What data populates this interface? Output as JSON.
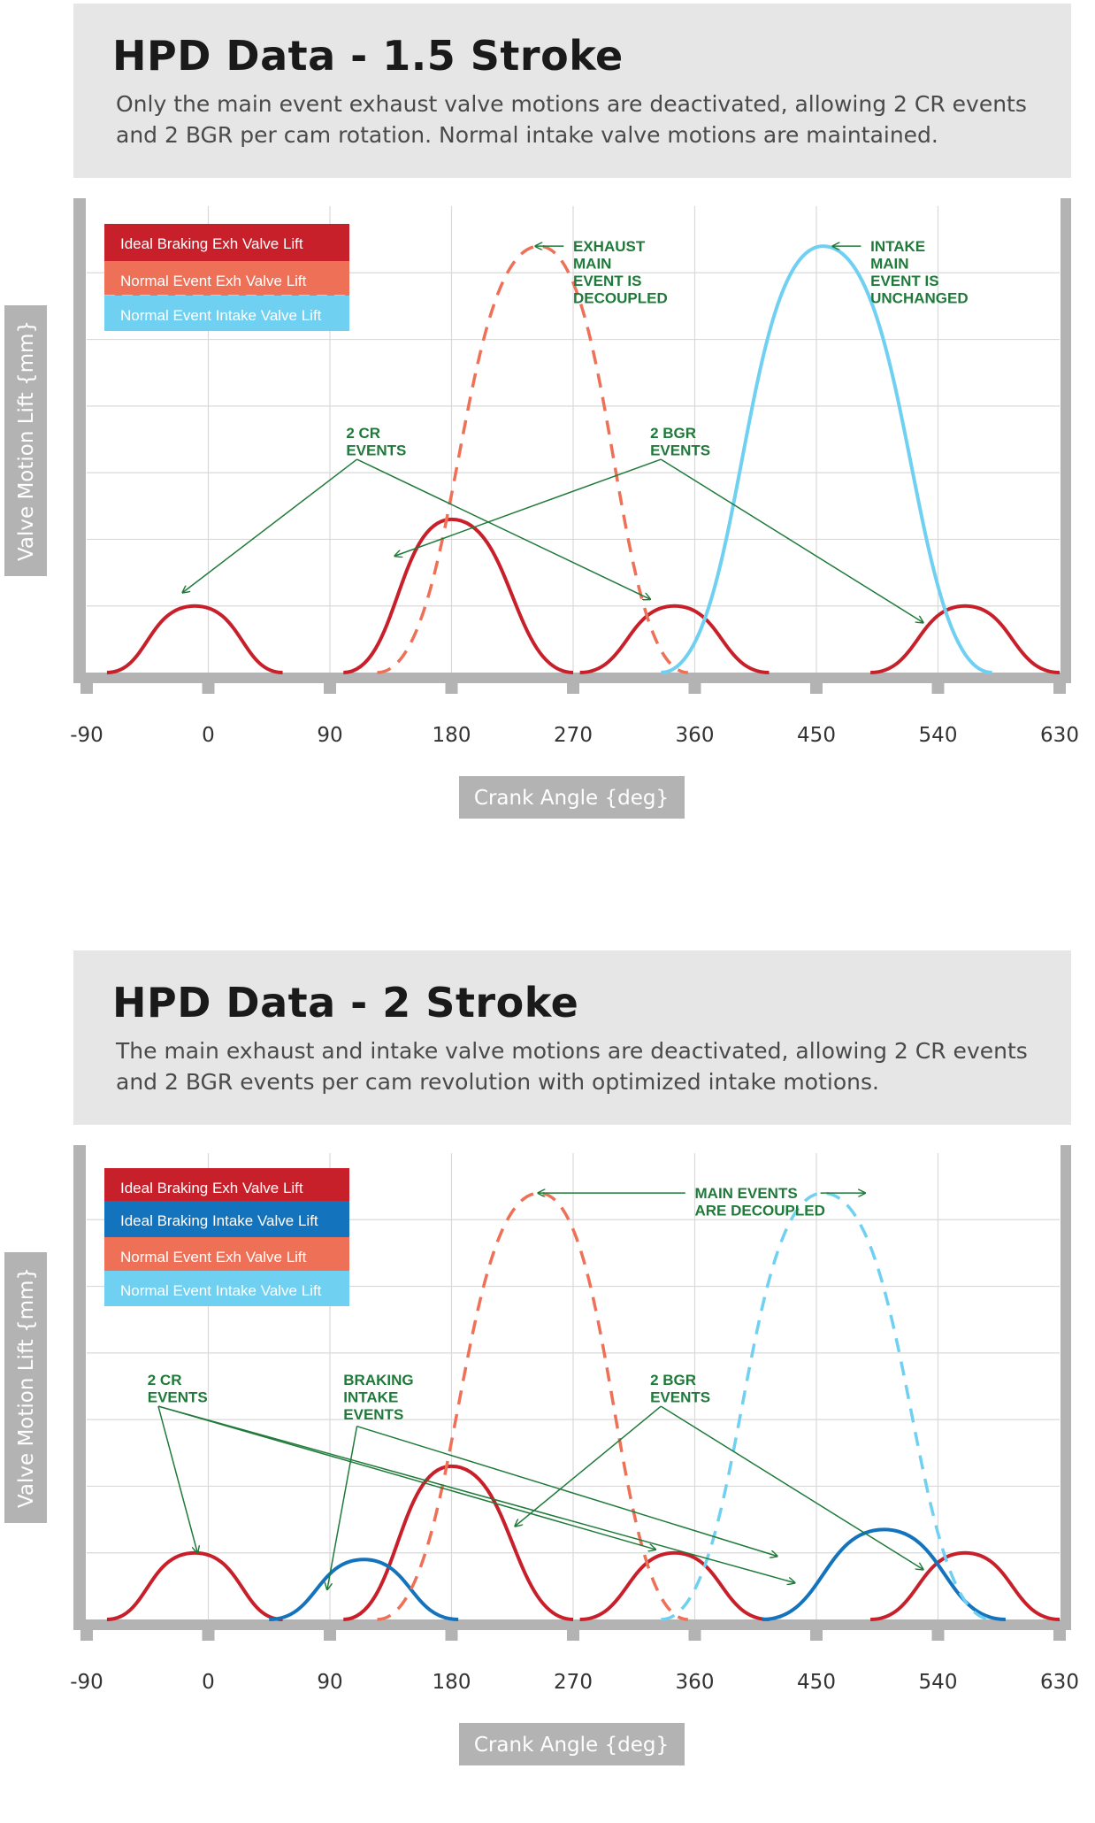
{
  "colors": {
    "ideal_exh": "#c8202a",
    "ideal_int": "#1473bd",
    "normal_exh": "#ee7057",
    "normal_int": "#6fd0f2",
    "annotation": "#1f7a3a",
    "axis": "#b3b3b3",
    "grid": "#d9d9d9"
  },
  "chart_data": [
    {
      "type": "line",
      "title": "HPD Data - 1.5 Stroke",
      "subtitle": "Only the main event exhaust valve motions are deactivated, allowing 2 CR events and 2 BGR per cam rotation. Normal intake valve motions are maintained.",
      "xlabel": "Crank Angle {deg}",
      "ylabel": "Valve Motion Lift {mm}",
      "xlim": [
        -90,
        630
      ],
      "x_ticks": [
        -90,
        0,
        90,
        180,
        270,
        360,
        450,
        540,
        630
      ],
      "ylim": [
        0,
        7
      ],
      "grid": true,
      "legend_position": "top-left",
      "legend": [
        {
          "label": "Ideal Braking Exh Valve Lift",
          "color": "ideal_exh"
        },
        {
          "label": "Normal Event Exh Valve Lift",
          "color": "normal_exh"
        },
        {
          "label": "Normal Event Intake Valve Lift",
          "color": "normal_int"
        }
      ],
      "series": [
        {
          "name": "Ideal Braking Exh Valve Lift",
          "style": "solid",
          "color": "ideal_exh",
          "x": [
            -75,
            -45,
            -10,
            25,
            55
          ],
          "y": [
            0,
            0.5,
            1.0,
            0.5,
            0
          ]
        },
        {
          "name": "Ideal Braking Exh Valve Lift",
          "style": "solid",
          "color": "ideal_exh",
          "x": [
            100,
            140,
            180,
            225,
            270
          ],
          "y": [
            0,
            1.2,
            2.3,
            1.2,
            0
          ]
        },
        {
          "name": "Ideal Braking Exh Valve Lift",
          "style": "solid",
          "color": "ideal_exh",
          "x": [
            275,
            310,
            345,
            380,
            415
          ],
          "y": [
            0,
            0.5,
            1.0,
            0.5,
            0
          ]
        },
        {
          "name": "Ideal Braking Exh Valve Lift",
          "style": "solid",
          "color": "ideal_exh",
          "x": [
            490,
            525,
            560,
            595,
            630
          ],
          "y": [
            0,
            0.5,
            1.0,
            0.5,
            0
          ]
        },
        {
          "name": "Normal Event Exh Valve Lift",
          "style": "dashed",
          "color": "normal_exh",
          "x": [
            125,
            185,
            245,
            300,
            355
          ],
          "y": [
            0,
            3.2,
            6.4,
            3.2,
            0
          ]
        },
        {
          "name": "Normal Event Intake Valve Lift",
          "style": "solid",
          "color": "normal_int",
          "x": [
            335,
            395,
            455,
            520,
            580
          ],
          "y": [
            0,
            3.2,
            6.4,
            3.2,
            0
          ]
        }
      ],
      "annotations": [
        {
          "lines": [
            "EXHAUST",
            "MAIN",
            "EVENT IS",
            "DECOUPLED"
          ],
          "x": 270,
          "y": 6.4
        },
        {
          "lines": [
            "INTAKE",
            "MAIN",
            "EVENT IS",
            "UNCHANGED"
          ],
          "x": 490,
          "y": 6.4
        },
        {
          "lines": [
            "2 CR",
            "EVENTS"
          ],
          "x": 102,
          "y": 3.6
        },
        {
          "lines": [
            "2 BGR",
            "EVENTS"
          ],
          "x": 327,
          "y": 3.6
        }
      ]
    },
    {
      "type": "line",
      "title": "HPD Data - 2 Stroke",
      "subtitle": "The main exhaust and intake valve motions are deactivated, allowing 2 CR events and 2 BGR events per cam revolution with optimized intake motions.",
      "xlabel": "Crank Angle {deg}",
      "ylabel": "Valve Motion Lift {mm}",
      "xlim": [
        -90,
        630
      ],
      "x_ticks": [
        -90,
        0,
        90,
        180,
        270,
        360,
        450,
        540,
        630
      ],
      "ylim": [
        0,
        7
      ],
      "grid": true,
      "legend_position": "top-left",
      "legend": [
        {
          "label": "Ideal Braking Exh Valve Lift",
          "color": "ideal_exh"
        },
        {
          "label": "Ideal Braking Intake Valve Lift",
          "color": "ideal_int"
        },
        {
          "label": "Normal Event Exh Valve Lift",
          "color": "normal_exh"
        },
        {
          "label": "Normal Event Intake Valve Lift",
          "color": "normal_int"
        }
      ],
      "series": [
        {
          "name": "Ideal Braking Exh Valve Lift",
          "style": "solid",
          "color": "ideal_exh",
          "x": [
            -75,
            -45,
            -10,
            25,
            55
          ],
          "y": [
            0,
            0.5,
            1.0,
            0.5,
            0
          ]
        },
        {
          "name": "Ideal Braking Exh Valve Lift",
          "style": "solid",
          "color": "ideal_exh",
          "x": [
            100,
            140,
            180,
            225,
            270
          ],
          "y": [
            0,
            1.2,
            2.3,
            1.2,
            0
          ]
        },
        {
          "name": "Ideal Braking Exh Valve Lift",
          "style": "solid",
          "color": "ideal_exh",
          "x": [
            275,
            310,
            345,
            380,
            415
          ],
          "y": [
            0,
            0.5,
            1.0,
            0.5,
            0
          ]
        },
        {
          "name": "Ideal Braking Exh Valve Lift",
          "style": "solid",
          "color": "ideal_exh",
          "x": [
            490,
            525,
            560,
            595,
            630
          ],
          "y": [
            0,
            0.5,
            1.0,
            0.5,
            0
          ]
        },
        {
          "name": "Ideal Braking Intake Valve Lift",
          "style": "solid",
          "color": "ideal_int",
          "x": [
            45,
            80,
            115,
            150,
            185
          ],
          "y": [
            0,
            0.45,
            0.9,
            0.45,
            0
          ]
        },
        {
          "name": "Ideal Braking Intake Valve Lift",
          "style": "solid",
          "color": "ideal_int",
          "x": [
            410,
            455,
            500,
            545,
            590
          ],
          "y": [
            0,
            0.7,
            1.35,
            0.7,
            0
          ]
        },
        {
          "name": "Normal Event Exh Valve Lift",
          "style": "dashed",
          "color": "normal_exh",
          "x": [
            125,
            185,
            245,
            300,
            355
          ],
          "y": [
            0,
            3.2,
            6.4,
            3.2,
            0
          ]
        },
        {
          "name": "Normal Event Intake Valve Lift",
          "style": "dashed",
          "color": "normal_int",
          "x": [
            335,
            395,
            455,
            520,
            580
          ],
          "y": [
            0,
            3.2,
            6.4,
            3.2,
            0
          ]
        }
      ],
      "annotations": [
        {
          "lines": [
            "MAIN EVENTS",
            "ARE DECOUPLED"
          ],
          "x": 360,
          "y": 6.4
        },
        {
          "lines": [
            "2 CR",
            "EVENTS"
          ],
          "x": -45,
          "y": 3.6
        },
        {
          "lines": [
            "BRAKING",
            "INTAKE",
            "EVENTS"
          ],
          "x": 100,
          "y": 3.6
        },
        {
          "lines": [
            "2 BGR",
            "EVENTS"
          ],
          "x": 327,
          "y": 3.6
        }
      ]
    }
  ]
}
